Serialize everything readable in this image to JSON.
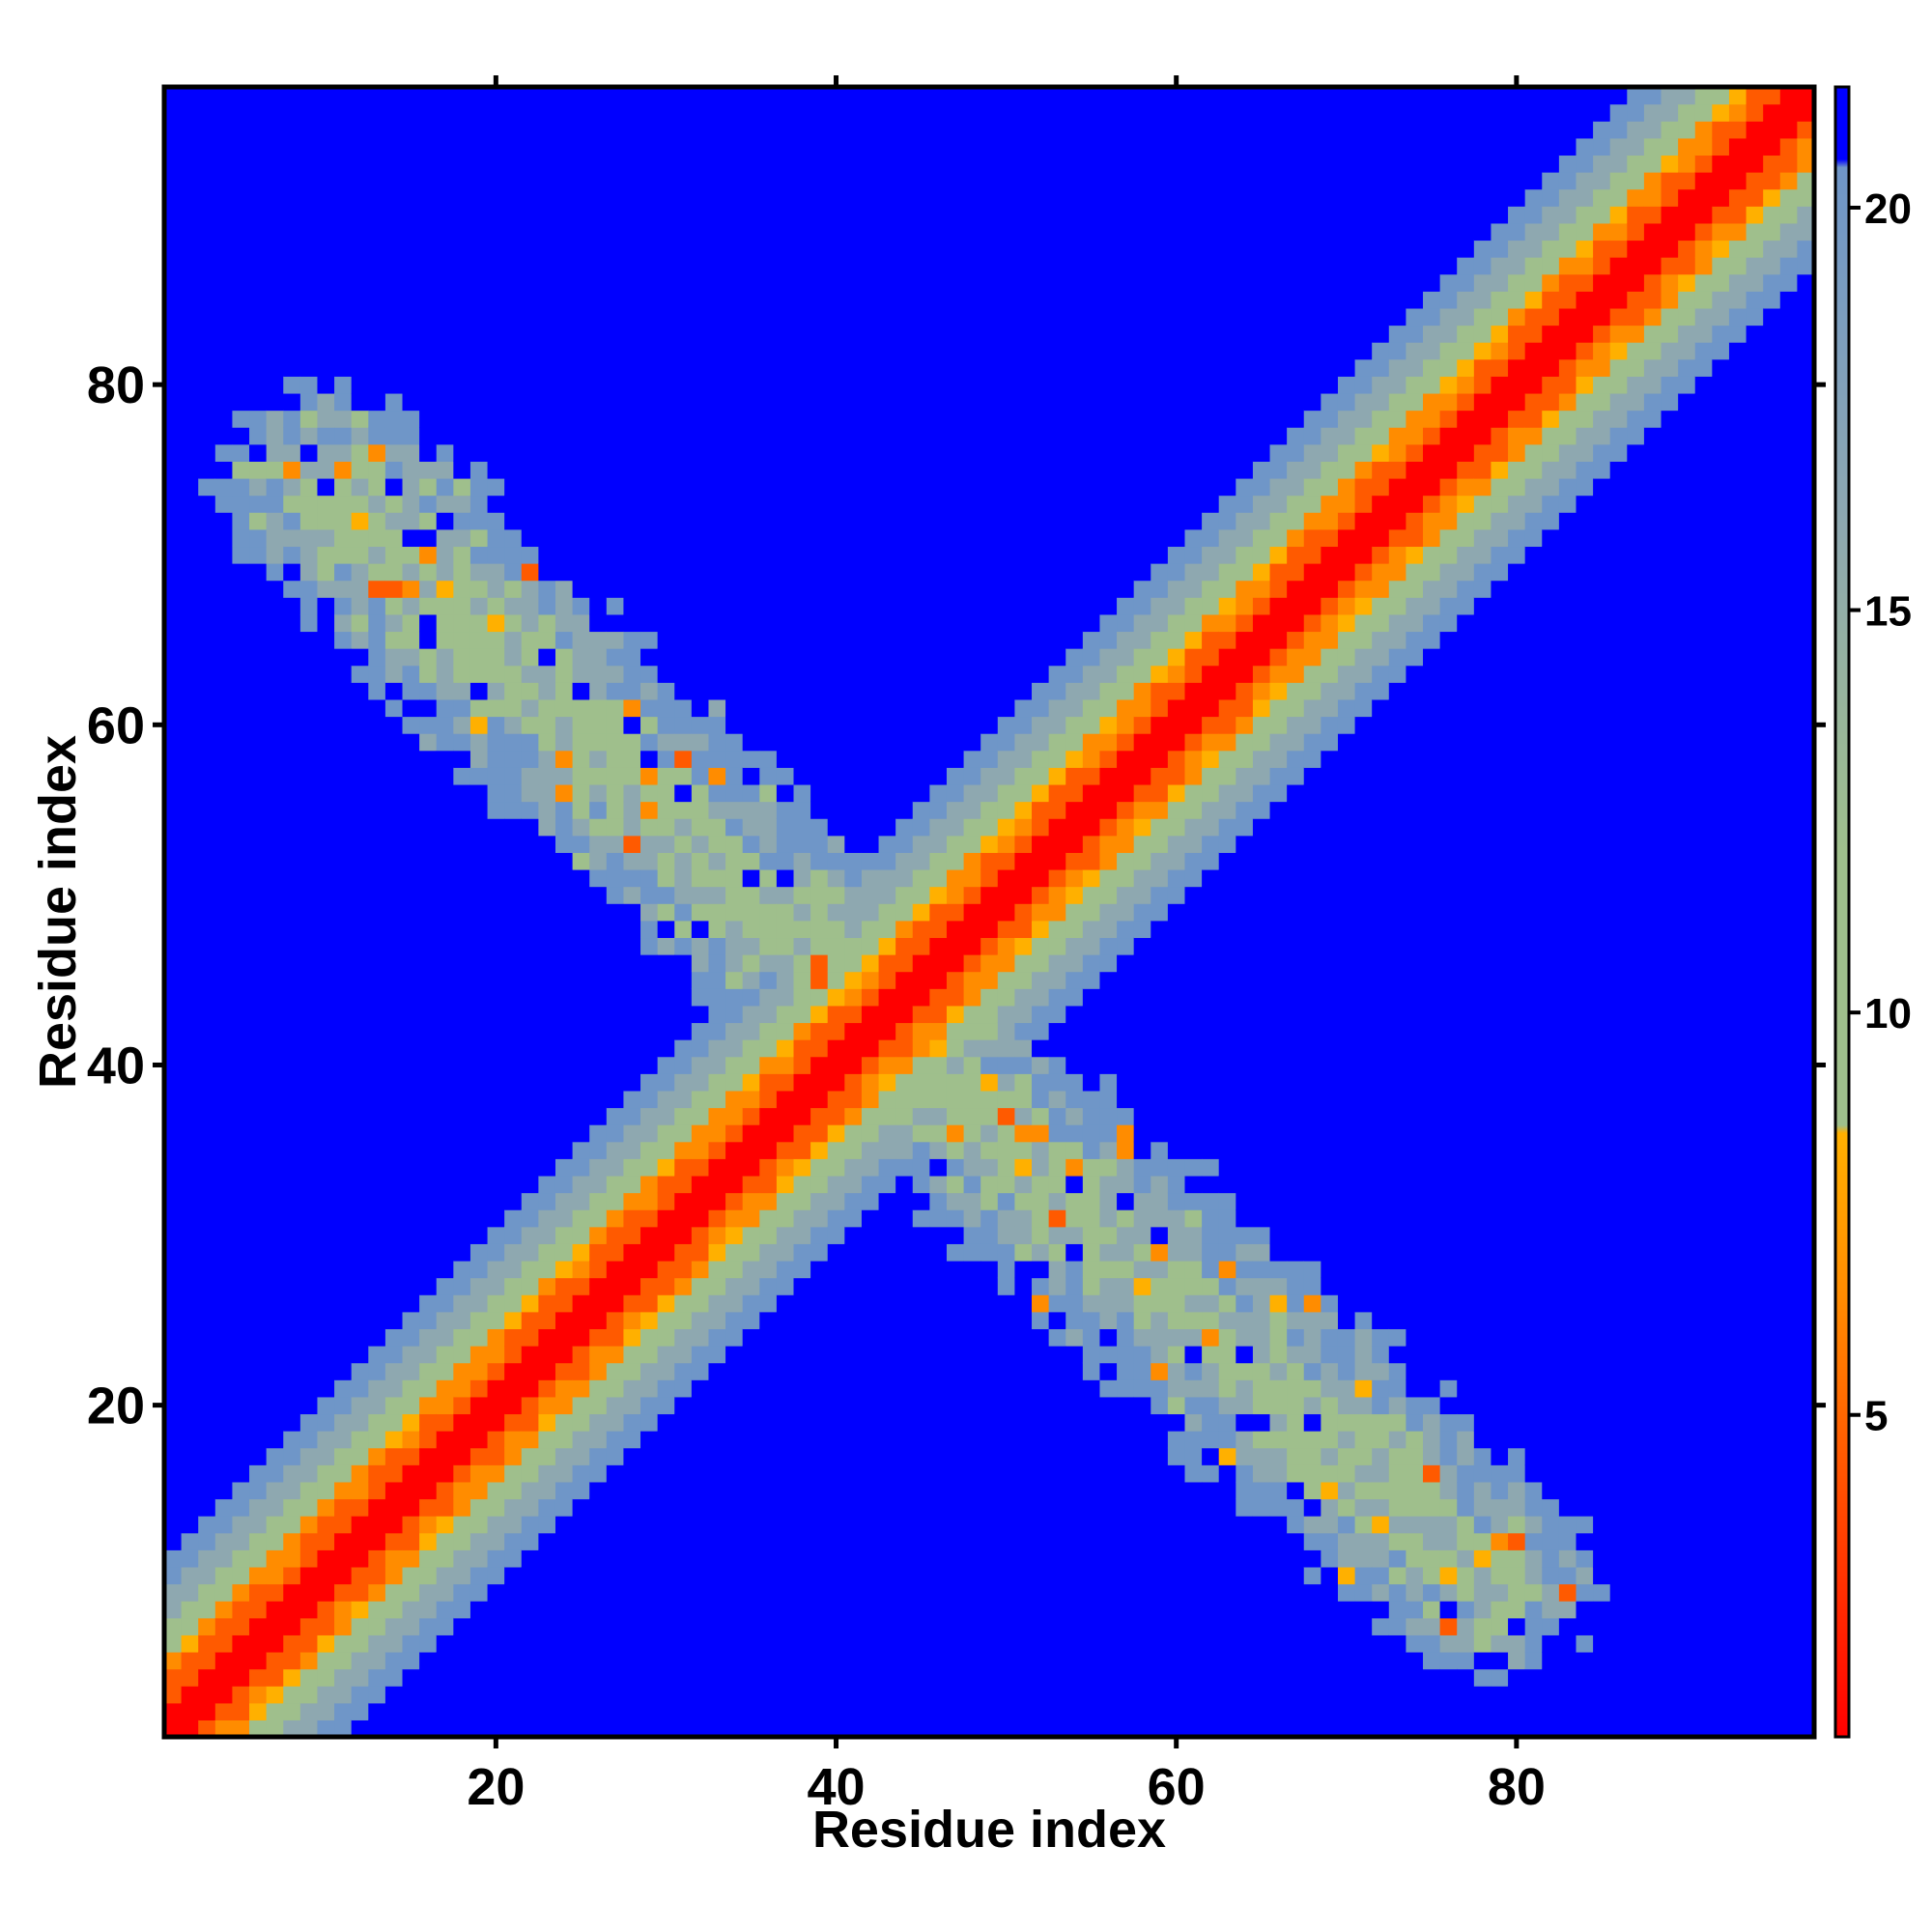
{
  "chart_data": {
    "type": "heatmap",
    "title": "",
    "xlabel": "Residue index",
    "ylabel": "Residue index",
    "n_residues": 97,
    "xlim": [
      0.5,
      97.5
    ],
    "ylim": [
      0.5,
      97.5
    ],
    "x_ticks": [
      20,
      40,
      60,
      80
    ],
    "y_ticks": [
      20,
      40,
      60,
      80
    ],
    "grid": false,
    "colorbar": {
      "position": "right",
      "range": [
        1,
        21.5
      ],
      "ticks": [
        5,
        10,
        15,
        20
      ],
      "colors": {
        "red": "#ff0000",
        "orange_red": "#ff5a00",
        "orange": "#ff8c00",
        "amber": "#ffb000",
        "sage": "#9fbf8c",
        "grey_blue": "#8ea8b0",
        "steel": "#6f96c8",
        "blue": "#0000ff"
      },
      "stops": [
        {
          "value": 1,
          "color": "#ff0000"
        },
        {
          "value": 4.5,
          "color": "#ff5a00"
        },
        {
          "value": 6.5,
          "color": "#ff8c00"
        },
        {
          "value": 8.5,
          "color": "#ffb000"
        },
        {
          "value": 8.6,
          "color": "#9fbf8c"
        },
        {
          "value": 12,
          "color": "#9fbf8c"
        },
        {
          "value": 16,
          "color": "#8ea8b0"
        },
        {
          "value": 20.5,
          "color": "#6f96c8"
        },
        {
          "value": 20.6,
          "color": "#0000ff"
        },
        {
          "value": 21.5,
          "color": "#0000ff"
        }
      ]
    },
    "structure": {
      "main_diagonal": {
        "from": [
          1,
          1
        ],
        "to": [
          97,
          97
        ],
        "half_width_residues": 10
      },
      "anti_diagonal_band": {
        "center_line": [
          [
            10,
            74
          ],
          [
            40,
            45
          ],
          [
            45,
            40
          ],
          [
            78,
            10
          ]
        ],
        "value_range": [
          5,
          20
        ],
        "approx_half_width_residues": 5
      }
    }
  }
}
